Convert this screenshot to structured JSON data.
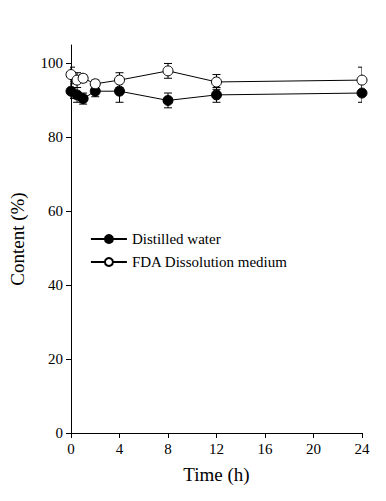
{
  "chart_data": {
    "type": "line",
    "x_label": "Time (h)",
    "y_label": "Content (%)",
    "xlim": [
      0,
      24
    ],
    "xticks": [
      0,
      4,
      8,
      12,
      16,
      20,
      24
    ],
    "ylim": [
      0,
      105
    ],
    "yticks": [
      0,
      20,
      40,
      60,
      80,
      100
    ],
    "grid": false,
    "legend": "left",
    "series": [
      {
        "name": "Distilled water",
        "color": "#000000",
        "marker": "filled_circle",
        "x": [
          0,
          0.5,
          1,
          2,
          4,
          8,
          12,
          24
        ],
        "values": [
          92.5,
          91.5,
          90.5,
          92.5,
          92.5,
          90,
          91.5,
          92
        ],
        "errors": [
          2,
          2,
          1.5,
          1.5,
          3,
          2,
          2,
          2.5
        ]
      },
      {
        "name": "FDA Dissolution medium",
        "color": "#000000",
        "marker": "open_circle",
        "x": [
          0,
          0.5,
          1,
          2,
          4,
          8,
          12,
          24
        ],
        "values": [
          97,
          95.5,
          96,
          94.5,
          95.5,
          98,
          95,
          95.5
        ],
        "errors": [
          2,
          2,
          1,
          1,
          2,
          2,
          2,
          3.5
        ]
      }
    ]
  }
}
